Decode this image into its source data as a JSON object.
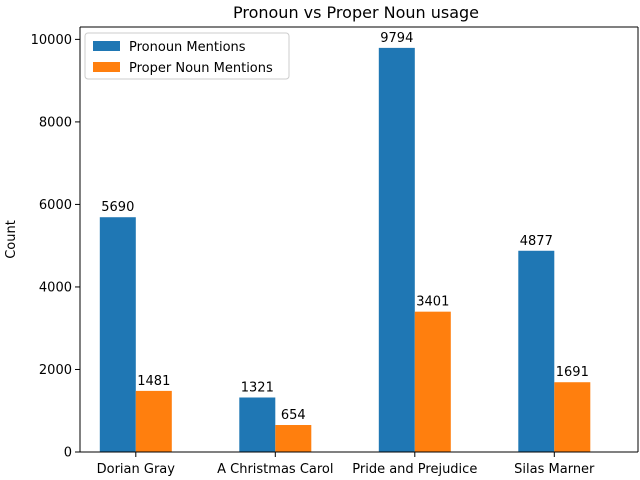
{
  "chart_data": {
    "type": "bar",
    "title": "Pronoun vs Proper Noun usage",
    "xlabel": "",
    "ylabel": "Count",
    "categories": [
      "Dorian Gray",
      "A Christmas Carol",
      "Pride and Prejudice",
      "Silas Marner"
    ],
    "series": [
      {
        "name": "Pronoun Mentions",
        "color": "#1f77b4",
        "values": [
          5690,
          1321,
          9794,
          4877
        ]
      },
      {
        "name": "Proper Noun Mentions",
        "color": "#ff7f0e",
        "values": [
          1481,
          654,
          3401,
          1691
        ]
      }
    ],
    "yticks": [
      0,
      2000,
      4000,
      6000,
      8000,
      10000
    ],
    "ylim": [
      0,
      10300
    ],
    "legend_position": "upper-left",
    "grid": false,
    "data_labels": true
  }
}
